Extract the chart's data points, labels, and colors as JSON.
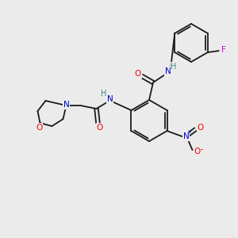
{
  "background_color": "#ebebeb",
  "bond_color": "#1a1a1a",
  "atom_colors": {
    "N": "#0000cc",
    "O": "#ff0000",
    "F": "#dd00dd",
    "H": "#3a8a7a",
    "C": "#1a1a1a"
  },
  "figsize": [
    3.0,
    3.0
  ],
  "dpi": 100
}
